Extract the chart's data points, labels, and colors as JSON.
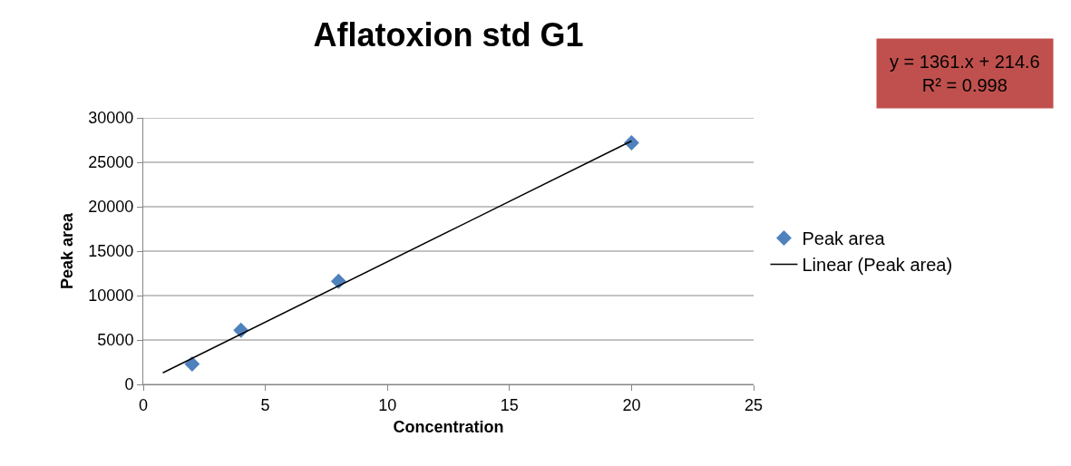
{
  "chart_data": {
    "type": "scatter",
    "title": "Aflatoxion std G1",
    "xlabel": "Concentration",
    "ylabel": "Peak area",
    "annotations": [
      "y = 1361.x + 214.6",
      "R² = 0.998"
    ],
    "xlim": [
      0,
      25
    ],
    "xticks": [
      0,
      5,
      10,
      15,
      20,
      25
    ],
    "ylim": [
      0,
      30000
    ],
    "yticks": [
      0,
      5000,
      10000,
      15000,
      20000,
      25000,
      30000
    ],
    "grid": "y",
    "legend": "right",
    "series": [
      {
        "name": "Peak area",
        "color": "#4f81bd",
        "marker": "diamond",
        "x": [
          2,
          4,
          8,
          20
        ],
        "values": [
          2300,
          6100,
          11600,
          27200
        ]
      },
      {
        "name": "Linear (Peak area)",
        "type": "line",
        "color": "#000000",
        "line_style": "solid",
        "marker": "none",
        "x": [
          0.8,
          20
        ],
        "values": [
          1300,
          27400
        ]
      }
    ]
  }
}
